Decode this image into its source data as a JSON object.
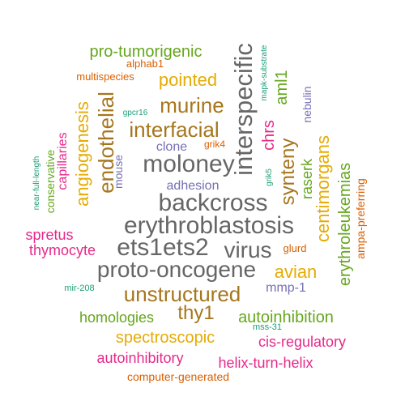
{
  "palette": {
    "teal": "#1b9e77",
    "orange": "#d95f02",
    "purple": "#7570b3",
    "magenta": "#e7298a",
    "green": "#66a61e",
    "gold": "#e6ab02",
    "brown": "#a6761d",
    "gray": "#666666"
  },
  "words": [
    {
      "id": "backcross",
      "text": "backcross",
      "color": "gray"
    },
    {
      "id": "erythroblastosis",
      "text": "erythroblastosis",
      "color": "gray"
    },
    {
      "id": "moloney",
      "text": "moloney",
      "color": "gray"
    },
    {
      "id": "interspecific",
      "text": "interspecific",
      "color": "gray"
    },
    {
      "id": "ets1ets2",
      "text": "ets1ets2",
      "color": "gray"
    },
    {
      "id": "virus",
      "text": "virus",
      "color": "gray"
    },
    {
      "id": "proto-oncogene",
      "text": "proto-oncogene",
      "color": "gray"
    },
    {
      "id": "unstructured",
      "text": "unstructured",
      "color": "brown"
    },
    {
      "id": "endothelial",
      "text": "endothelial",
      "color": "brown"
    },
    {
      "id": "interfacial",
      "text": "interfacial",
      "color": "brown"
    },
    {
      "id": "murine",
      "text": "murine",
      "color": "brown"
    },
    {
      "id": "synteny",
      "text": "synteny",
      "color": "brown"
    },
    {
      "id": "thy1",
      "text": "thy1",
      "color": "brown"
    },
    {
      "id": "pointed",
      "text": "pointed",
      "color": "gold"
    },
    {
      "id": "angiogenesis",
      "text": "angiogenesis",
      "color": "gold"
    },
    {
      "id": "centimorgans",
      "text": "centimorgans",
      "color": "gold"
    },
    {
      "id": "avian",
      "text": "avian",
      "color": "gold"
    },
    {
      "id": "spectroscopic",
      "text": "spectroscopic",
      "color": "gold"
    },
    {
      "id": "pro-tumorigenic",
      "text": "pro-tumorigenic",
      "color": "green"
    },
    {
      "id": "aml1",
      "text": "aml1",
      "color": "green"
    },
    {
      "id": "raserk",
      "text": "raserk",
      "color": "green"
    },
    {
      "id": "erythroleukemias",
      "text": "erythroleukemias",
      "color": "green"
    },
    {
      "id": "homologies",
      "text": "homologies",
      "color": "green"
    },
    {
      "id": "autoinhibition",
      "text": "autoinhibition",
      "color": "green"
    },
    {
      "id": "conservative",
      "text": "conservative",
      "color": "green"
    },
    {
      "id": "chrs",
      "text": "chrs",
      "color": "magenta"
    },
    {
      "id": "capillaries",
      "text": "capillaries",
      "color": "magenta"
    },
    {
      "id": "spretus",
      "text": "spretus",
      "color": "magenta"
    },
    {
      "id": "thymocyte",
      "text": "thymocyte",
      "color": "magenta"
    },
    {
      "id": "cis-regulatory",
      "text": "cis-regulatory",
      "color": "magenta"
    },
    {
      "id": "autoinhibitory",
      "text": "autoinhibitory",
      "color": "magenta"
    },
    {
      "id": "helix-turn-helix",
      "text": "helix-turn-helix",
      "color": "magenta"
    },
    {
      "id": "clone",
      "text": "clone",
      "color": "purple"
    },
    {
      "id": "adhesion",
      "text": "adhesion",
      "color": "purple"
    },
    {
      "id": "mouse",
      "text": "mouse",
      "color": "purple"
    },
    {
      "id": "nebulin",
      "text": "nebulin",
      "color": "purple"
    },
    {
      "id": "mmp-1",
      "text": "mmp-1",
      "color": "purple"
    },
    {
      "id": "alphab1",
      "text": "alphab1",
      "color": "orange"
    },
    {
      "id": "multispecies",
      "text": "multispecies",
      "color": "orange"
    },
    {
      "id": "grik4",
      "text": "grik4",
      "color": "orange"
    },
    {
      "id": "glurd",
      "text": "glurd",
      "color": "orange"
    },
    {
      "id": "ampa-preferring",
      "text": "ampa-preferring",
      "color": "orange"
    },
    {
      "id": "computer-generated",
      "text": "computer-generated",
      "color": "orange"
    },
    {
      "id": "mapk-substrate",
      "text": "mapk-substrate",
      "color": "teal"
    },
    {
      "id": "gpcr16",
      "text": "gpcr16",
      "color": "teal"
    },
    {
      "id": "grik5",
      "text": "grik5",
      "color": "teal"
    },
    {
      "id": "near-full-length",
      "text": "near-full-length",
      "color": "teal"
    },
    {
      "id": "mir-208",
      "text": "mir-208",
      "color": "teal"
    },
    {
      "id": "mss-31",
      "text": "mss-31",
      "color": "teal"
    }
  ]
}
